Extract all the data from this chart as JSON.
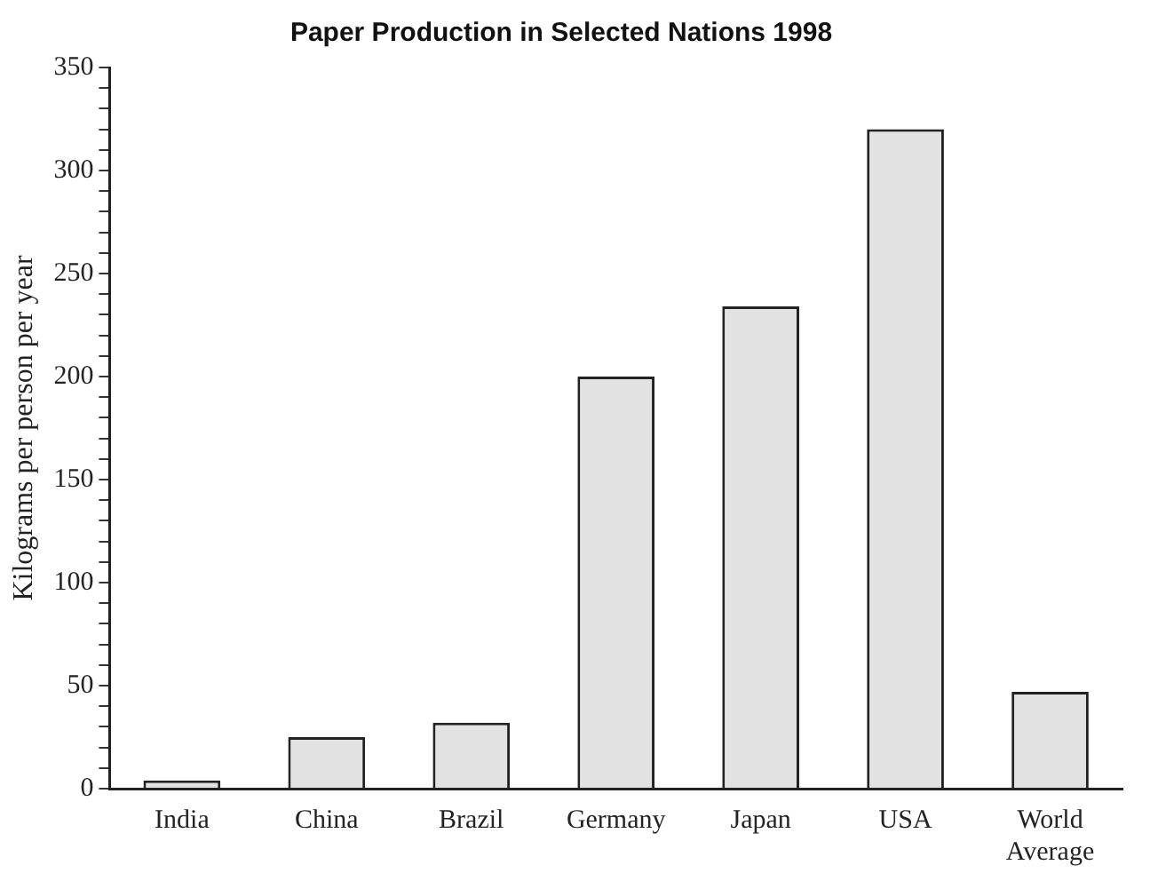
{
  "chart_data": {
    "type": "bar",
    "title": "Paper Production in Selected Nations 1998",
    "ylabel": "Kilograms per person per year",
    "categories": [
      "India",
      "China",
      "Brazil",
      "Germany",
      "Japan",
      "USA",
      "World Average"
    ],
    "values": [
      4,
      25,
      32,
      200,
      234,
      320,
      47
    ],
    "color": "#e2e2e2",
    "ylim": [
      0,
      350
    ],
    "yticks": [
      0,
      {
        "value": 10,
        "label": null
      },
      {
        "value": 20,
        "label": null
      },
      {
        "value": 30,
        "label": null
      },
      {
        "value": 40,
        "label": null
      },
      50,
      {
        "value": 60,
        "label": null
      },
      {
        "value": 70,
        "label": null
      },
      {
        "value": 80,
        "label": null
      },
      {
        "value": 90,
        "label": null
      },
      100,
      {
        "value": 110,
        "label": null
      },
      {
        "value": 120,
        "label": null
      },
      {
        "value": 130,
        "label": null
      },
      {
        "value": 140,
        "label": null
      },
      150,
      {
        "value": 160,
        "label": null
      },
      {
        "value": 170,
        "label": null
      },
      {
        "value": 180,
        "label": null
      },
      {
        "value": 190,
        "label": null
      },
      200,
      {
        "value": 210,
        "label": null
      },
      {
        "value": 220,
        "label": null
      },
      {
        "value": 230,
        "label": null
      },
      {
        "value": 240,
        "label": null
      },
      250,
      {
        "value": 260,
        "label": null
      },
      {
        "value": 270,
        "label": null
      },
      {
        "value": 280,
        "label": null
      },
      {
        "value": 290,
        "label": null
      },
      300,
      {
        "value": 310,
        "label": null
      },
      {
        "value": 320,
        "label": null
      },
      {
        "value": 330,
        "label": null
      },
      {
        "value": 340,
        "label": null
      },
      350
    ],
    "grid": false
  }
}
